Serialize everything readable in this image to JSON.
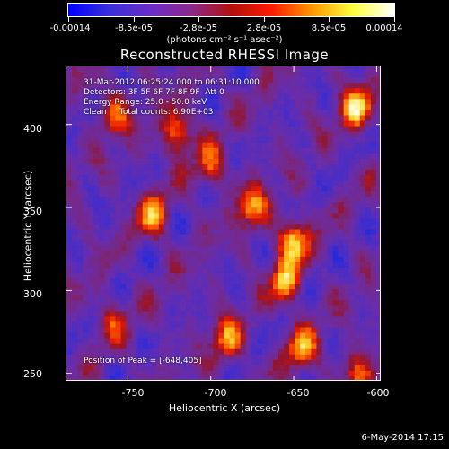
{
  "colorbar": {
    "tick_labels": [
      "-0.00014",
      "-8.5e-05",
      "-2.8e-05",
      "2.8e-05",
      "8.5e-05",
      "0.00014"
    ],
    "units": "(photons cm⁻² s⁻¹ asec⁻²)"
  },
  "title": "Reconstructed RHESSI Image",
  "info": {
    "time_range": "31-Mar-2012 06:25:24.000 to 06:31:10.000",
    "detectors": "Detectors: 3F 5F 6F 7F 8F 9F  Att 0",
    "energy_range": "Energy Range: 25.0 - 50.0 keV",
    "clean": "Clean     Total counts: 6.90E+03",
    "peak": "Position of Peak = [-648,405]"
  },
  "axes": {
    "xlabel": "Heliocentric X (arcsec)",
    "ylabel": "Heliocentric Y (arcsec)",
    "x_ticks": [
      "-750",
      "-700",
      "-650",
      "-600"
    ],
    "y_ticks": [
      "400",
      "350",
      "300",
      "250"
    ],
    "xlim": [
      -787,
      -597
    ],
    "ylim": [
      245,
      435
    ]
  },
  "timestamp": "6-May-2014 17:15",
  "colors": {
    "colormap": [
      "#0000ff",
      "#6a2cc8",
      "#8a2a8a",
      "#ff1a00",
      "#ff9a00",
      "#ffff40",
      "#ffffff"
    ],
    "background": "#000000",
    "foreground": "#ffffff"
  },
  "image_features": [
    {
      "x": -720,
      "y": 395,
      "level": 0.85
    },
    {
      "x": -735,
      "y": 345,
      "level": 0.75
    },
    {
      "x": -675,
      "y": 350,
      "level": 0.8
    },
    {
      "x": -650,
      "y": 330,
      "level": 0.95
    },
    {
      "x": -655,
      "y": 305,
      "level": 0.85
    },
    {
      "x": -612,
      "y": 410,
      "level": 0.95
    },
    {
      "x": -700,
      "y": 375,
      "level": 0.6
    },
    {
      "x": -690,
      "y": 270,
      "level": 0.75
    },
    {
      "x": -645,
      "y": 265,
      "level": 0.8
    },
    {
      "x": -610,
      "y": 250,
      "level": 0.7
    },
    {
      "x": -758,
      "y": 405,
      "level": 0.65
    },
    {
      "x": -760,
      "y": 282,
      "level": 0.45
    }
  ]
}
